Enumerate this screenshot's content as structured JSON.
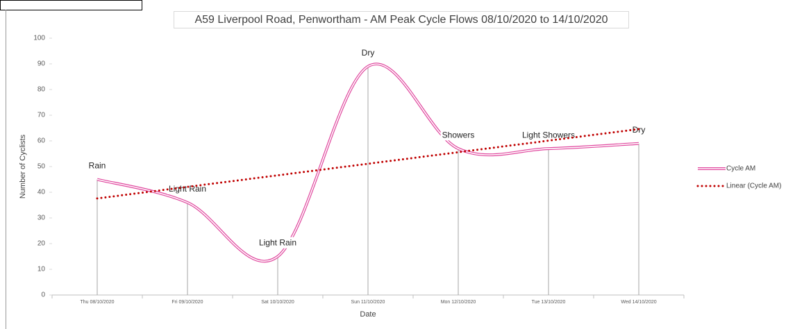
{
  "chart_data": {
    "type": "line",
    "title": "A59 Liverpool Road, Penwortham - AM Peak Cycle Flows 08/10/2020 to 14/10/2020",
    "xlabel": "Date",
    "ylabel": "Number of Cyclists",
    "categories": [
      "Thu 08/10/2020",
      "Fri 09/10/2020",
      "Sat 10/10/2020",
      "Sun 11/10/2020",
      "Mon 12/10/2020",
      "Tue 13/10/2020",
      "Wed 14/10/2020"
    ],
    "series": [
      {
        "name": "Cycle AM",
        "color": "#e0479e",
        "smooth": true,
        "values": [
          45,
          36,
          15,
          89,
          57,
          57,
          59
        ],
        "point_labels": [
          "Rain",
          "Light Rain",
          "Light Rain",
          "Dry",
          "Showers",
          "Light Showers",
          "Dry"
        ]
      },
      {
        "name": "Linear (Cycle AM)",
        "color": "#c00000",
        "dotted": true,
        "values": [
          37.6,
          42.1,
          46.6,
          51.1,
          55.6,
          60.1,
          64.6
        ]
      }
    ],
    "ylim": [
      0,
      100
    ],
    "yticks": [
      0,
      10,
      20,
      30,
      40,
      50,
      60,
      70,
      80,
      90,
      100
    ],
    "legend": "right"
  }
}
